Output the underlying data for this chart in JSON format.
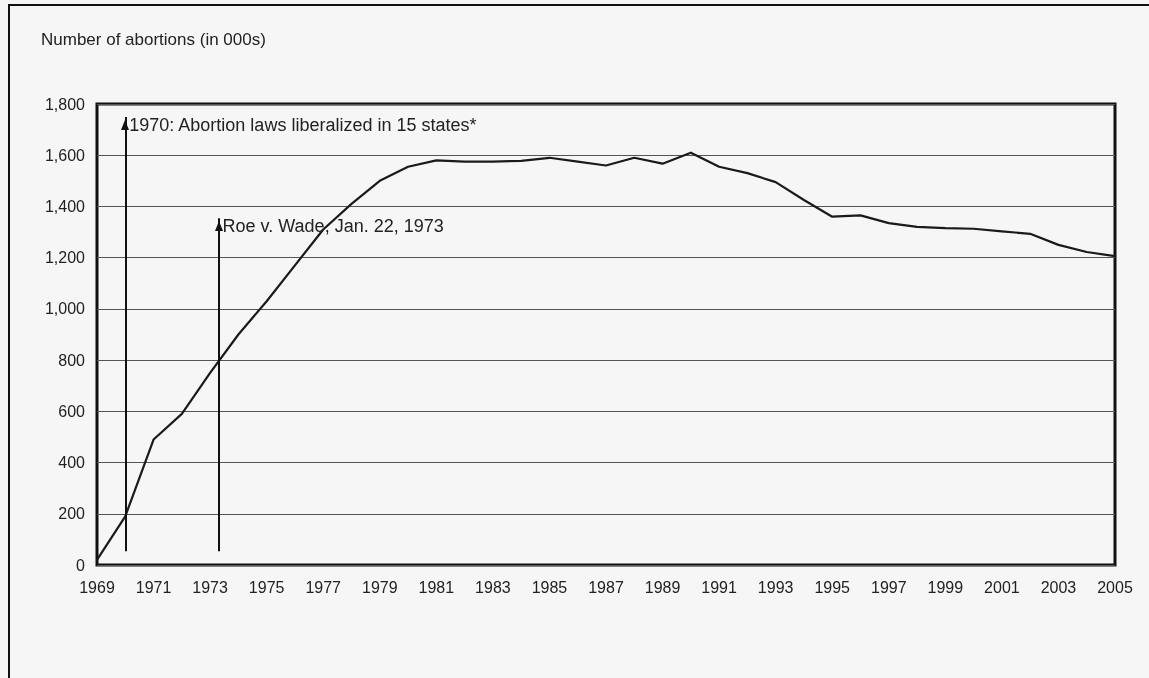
{
  "chart_data": {
    "type": "line",
    "ylabel": "Number of abortions (in 000s)",
    "x": [
      1969,
      1970,
      1971,
      1972,
      1973,
      1974,
      1975,
      1976,
      1977,
      1978,
      1979,
      1980,
      1981,
      1982,
      1983,
      1984,
      1985,
      1986,
      1987,
      1988,
      1989,
      1990,
      1991,
      1992,
      1993,
      1994,
      1995,
      1996,
      1997,
      1998,
      1999,
      2000,
      2001,
      2002,
      2003,
      2004,
      2005
    ],
    "series": [
      {
        "color": "#1a1a1a",
        "values": [
          20,
          190,
          490,
          590,
          750,
          900,
          1030,
          1170,
          1310,
          1410,
          1500,
          1555,
          1580,
          1575,
          1575,
          1578,
          1590,
          1575,
          1560,
          1590,
          1567,
          1610,
          1555,
          1530,
          1495,
          1425,
          1360,
          1365,
          1335,
          1320,
          1315,
          1313,
          1303,
          1293,
          1250,
          1222,
          1206
        ]
      }
    ],
    "xlim": [
      1969,
      2005
    ],
    "xticks": [
      1969,
      1971,
      1973,
      1975,
      1977,
      1979,
      1981,
      1983,
      1985,
      1987,
      1989,
      1991,
      1993,
      1995,
      1997,
      1999,
      2001,
      2003,
      2005
    ],
    "ylim": [
      0,
      1800
    ],
    "yticks": [
      {
        "value": 0,
        "label": "0"
      },
      {
        "value": 200,
        "label": "200"
      },
      {
        "value": 400,
        "label": "400"
      },
      {
        "value": 600,
        "label": "600"
      },
      {
        "value": 800,
        "label": "800"
      },
      {
        "value": 1000,
        "label": "1,000"
      },
      {
        "value": 1200,
        "label": "1,200"
      },
      {
        "value": 1400,
        "label": "1,400"
      },
      {
        "value": 1600,
        "label": "1,600"
      },
      {
        "value": 1800,
        "label": "1,800"
      }
    ],
    "grid": "y",
    "marker": "none",
    "line_style": "solid",
    "ref_lines": [
      {
        "axis": "x",
        "value": 1970,
        "label": "1970: Abortion laws liberalized in 15 states*",
        "color": "#111111"
      },
      {
        "axis": "x",
        "value": 1973.3,
        "label": "Roe v. Wade, Jan. 22, 1973",
        "color": "#111111"
      }
    ]
  }
}
